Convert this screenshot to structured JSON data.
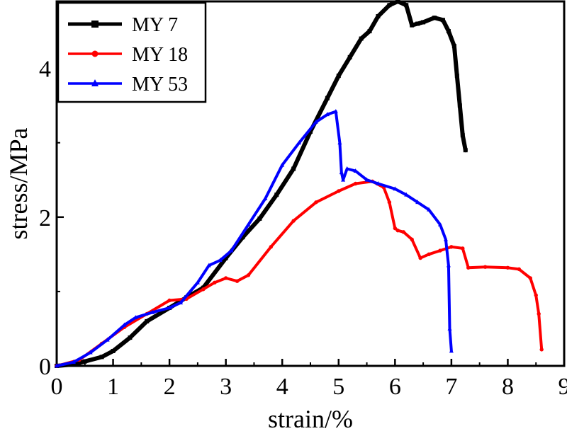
{
  "chart_data": {
    "type": "line",
    "title": "",
    "xlabel": "strain/%",
    "ylabel": "stress/MPa",
    "xlim": [
      0,
      9
    ],
    "ylim": [
      0,
      4.9
    ],
    "xticks": [
      0,
      1,
      2,
      3,
      4,
      5,
      6,
      7,
      8,
      9
    ],
    "xtick_labels": [
      "0",
      "1",
      "2",
      "3",
      "4",
      "5",
      "6",
      "7",
      "8",
      "9"
    ],
    "yticks": [
      0,
      2,
      4
    ],
    "ytick_labels": [
      "0",
      "2",
      "4"
    ],
    "legend_position": "top-left",
    "series": [
      {
        "name": "MY 7",
        "color": "#000000",
        "marker": "square",
        "x": [
          0,
          0.3,
          0.5,
          0.8,
          1.0,
          1.3,
          1.6,
          2.0,
          2.3,
          2.6,
          3.0,
          3.3,
          3.6,
          3.9,
          4.2,
          4.5,
          4.8,
          5.0,
          5.2,
          5.4,
          5.55,
          5.7,
          5.9,
          6.05,
          6.2,
          6.3,
          6.4,
          6.5,
          6.7,
          6.85,
          6.95,
          7.05,
          7.1,
          7.15,
          7.2,
          7.25
        ],
        "y": [
          0,
          0.02,
          0.06,
          0.12,
          0.2,
          0.38,
          0.6,
          0.78,
          0.92,
          1.05,
          1.45,
          1.73,
          1.98,
          2.3,
          2.65,
          3.15,
          3.6,
          3.9,
          4.15,
          4.4,
          4.5,
          4.7,
          4.85,
          4.9,
          4.85,
          4.58,
          4.6,
          4.62,
          4.68,
          4.65,
          4.5,
          4.3,
          3.9,
          3.5,
          3.1,
          2.9
        ]
      },
      {
        "name": "MY 18",
        "color": "#ff0000",
        "marker": "dot",
        "x": [
          0,
          0.4,
          0.8,
          1.2,
          1.6,
          2.0,
          2.3,
          2.6,
          2.8,
          3.0,
          3.2,
          3.4,
          3.8,
          4.2,
          4.6,
          5.0,
          5.3,
          5.6,
          5.8,
          5.9,
          6.0,
          6.05,
          6.15,
          6.3,
          6.45,
          6.6,
          6.8,
          7.0,
          7.2,
          7.3,
          7.6,
          8.0,
          8.2,
          8.4,
          8.5,
          8.55,
          8.6
        ],
        "y": [
          0,
          0.08,
          0.3,
          0.52,
          0.7,
          0.88,
          0.9,
          1.03,
          1.12,
          1.18,
          1.14,
          1.22,
          1.6,
          1.95,
          2.2,
          2.35,
          2.45,
          2.48,
          2.4,
          2.2,
          1.85,
          1.82,
          1.8,
          1.7,
          1.45,
          1.5,
          1.55,
          1.6,
          1.58,
          1.32,
          1.33,
          1.32,
          1.3,
          1.18,
          0.95,
          0.7,
          0.22
        ]
      },
      {
        "name": "MY 53",
        "color": "#0000ff",
        "marker": "triangle",
        "x": [
          0,
          0.3,
          0.6,
          0.9,
          1.2,
          1.4,
          1.7,
          2.0,
          2.2,
          2.5,
          2.7,
          2.9,
          3.1,
          3.4,
          3.7,
          4.0,
          4.3,
          4.6,
          4.8,
          4.95,
          5.02,
          5.05,
          5.08,
          5.15,
          5.3,
          5.5,
          5.7,
          6.0,
          6.2,
          6.4,
          6.6,
          6.8,
          6.9,
          6.95,
          6.97,
          7.0
        ],
        "y": [
          0,
          0.05,
          0.18,
          0.35,
          0.55,
          0.65,
          0.72,
          0.78,
          0.85,
          1.12,
          1.35,
          1.42,
          1.55,
          1.9,
          2.25,
          2.7,
          3.0,
          3.28,
          3.38,
          3.42,
          3.0,
          2.6,
          2.5,
          2.65,
          2.62,
          2.5,
          2.45,
          2.38,
          2.3,
          2.2,
          2.1,
          1.9,
          1.7,
          1.35,
          0.5,
          0.2
        ]
      }
    ]
  }
}
